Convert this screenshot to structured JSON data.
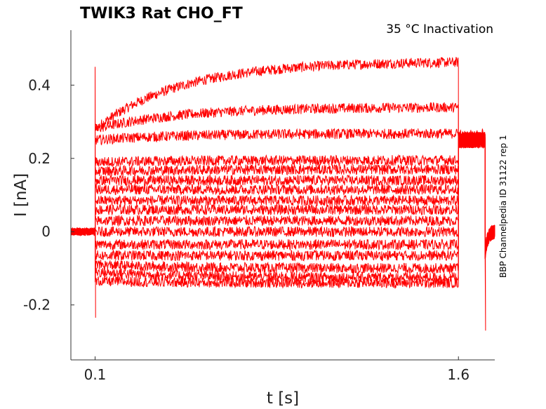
{
  "chart_data": {
    "type": "line",
    "title": "TWIK3  Rat  CHO_FT",
    "subtitle": "35 °C  Inactivation",
    "side_label": "BBP Channelpedia ID 31122 rep 1",
    "xlabel": "t [s]",
    "ylabel": "I [nA]",
    "xlim": [
      0.0,
      1.75
    ],
    "ylim": [
      -0.35,
      0.55
    ],
    "xticks": [
      0.1,
      1.6
    ],
    "xtick_labels": [
      "0.1",
      "1.6"
    ],
    "yticks": [
      -0.2,
      0,
      0.2,
      0.4
    ],
    "ytick_labels": [
      "-0.2",
      "0",
      "0.2",
      "0.4"
    ],
    "grid": false,
    "line_color": "#ff0000",
    "step_start": 0.1,
    "step_end": 1.6,
    "sweeps": [
      {
        "pre": 0.0,
        "start": 0.28,
        "steady": 0.465,
        "tail": 0.25,
        "post": 0.0
      },
      {
        "pre": 0.0,
        "start": 0.28,
        "steady": 0.34,
        "tail": 0.26,
        "post": 0.0
      },
      {
        "pre": 0.0,
        "start": 0.25,
        "steady": 0.268,
        "tail": 0.255,
        "post": 0.0
      },
      {
        "pre": 0.0,
        "start": 0.19,
        "steady": 0.195,
        "tail": 0.25,
        "post": 0.0
      },
      {
        "pre": 0.0,
        "start": 0.165,
        "steady": 0.17,
        "tail": 0.25,
        "post": 0.0
      },
      {
        "pre": 0.0,
        "start": 0.14,
        "steady": 0.14,
        "tail": 0.25,
        "post": 0.0
      },
      {
        "pre": 0.0,
        "start": 0.115,
        "steady": 0.115,
        "tail": 0.25,
        "post": 0.0
      },
      {
        "pre": 0.0,
        "start": 0.085,
        "steady": 0.085,
        "tail": 0.25,
        "post": 0.0
      },
      {
        "pre": 0.0,
        "start": 0.06,
        "steady": 0.06,
        "tail": 0.25,
        "post": 0.0
      },
      {
        "pre": 0.0,
        "start": 0.03,
        "steady": 0.03,
        "tail": 0.25,
        "post": 0.0
      },
      {
        "pre": 0.0,
        "start": 0.0,
        "steady": 0.0,
        "tail": 0.25,
        "post": 0.0
      },
      {
        "pre": 0.0,
        "start": -0.035,
        "steady": -0.035,
        "tail": 0.25,
        "post": 0.0
      },
      {
        "pre": 0.0,
        "start": -0.065,
        "steady": -0.065,
        "tail": 0.25,
        "post": 0.0
      },
      {
        "pre": 0.0,
        "start": -0.09,
        "steady": -0.1,
        "tail": 0.25,
        "post": 0.0
      },
      {
        "pre": 0.0,
        "start": -0.11,
        "steady": -0.125,
        "tail": 0.25,
        "post": 0.0
      },
      {
        "pre": 0.0,
        "start": -0.135,
        "steady": -0.14,
        "tail": 0.25,
        "post": 0.0
      }
    ],
    "onset_spike": {
      "max": 0.45,
      "min": -0.235
    },
    "offset_spike": {
      "min": -0.27
    }
  }
}
